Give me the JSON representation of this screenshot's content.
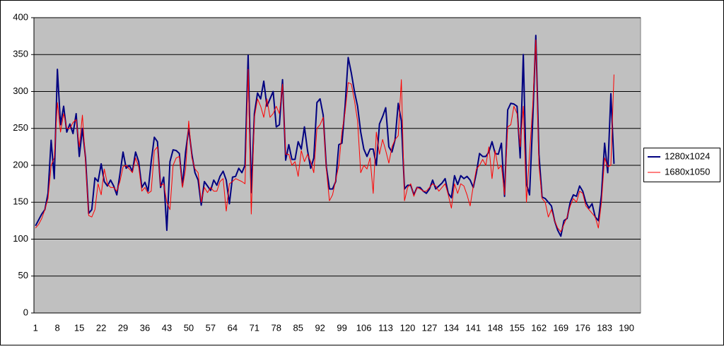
{
  "chart_data": {
    "type": "line",
    "categories": [
      1,
      null,
      null,
      null,
      null,
      null,
      null,
      8,
      null,
      null,
      null,
      null,
      null,
      null,
      15,
      null,
      null,
      null,
      null,
      null,
      null,
      22,
      null,
      null,
      null,
      null,
      null,
      null,
      29,
      null,
      null,
      null,
      null,
      null,
      null,
      36,
      null,
      null,
      null,
      null,
      null,
      null,
      43,
      null,
      null,
      null,
      null,
      null,
      null,
      50,
      null,
      null,
      null,
      null,
      null,
      null,
      57,
      null,
      null,
      null,
      null,
      null,
      null,
      64,
      null,
      null,
      null,
      null,
      null,
      null,
      71,
      null,
      null,
      null,
      null,
      null,
      null,
      78,
      null,
      null,
      null,
      null,
      null,
      null,
      85,
      null,
      null,
      null,
      null,
      null,
      null,
      92,
      null,
      null,
      null,
      null,
      null,
      null,
      99,
      null,
      null,
      null,
      null,
      null,
      null,
      106,
      null,
      null,
      null,
      null,
      null,
      null,
      113,
      null,
      null,
      null,
      null,
      null,
      null,
      120,
      null,
      null,
      null,
      null,
      null,
      null,
      127,
      null,
      null,
      null,
      null,
      null,
      null,
      134,
      null,
      null,
      null,
      null,
      null,
      null,
      141,
      null,
      null,
      null,
      null,
      null,
      null,
      148,
      null,
      null,
      null,
      null,
      null,
      null,
      155,
      null,
      null,
      null,
      null,
      null,
      null,
      162,
      null,
      null,
      null,
      null,
      null,
      null,
      169,
      null,
      null,
      null,
      null,
      null,
      null,
      176,
      null,
      null,
      null,
      null,
      null,
      null,
      183,
      null,
      null,
      null,
      null,
      null,
      null,
      190,
      null,
      null,
      null,
      null
    ],
    "series": [
      {
        "name": "1280x1024",
        "color": "#000080",
        "values": [
          118,
          126,
          134,
          140,
          162,
          234,
          182,
          330,
          255,
          280,
          245,
          256,
          243,
          270,
          212,
          250,
          210,
          135,
          140,
          183,
          178,
          202,
          178,
          172,
          180,
          172,
          160,
          188,
          218,
          196,
          200,
          192,
          218,
          205,
          170,
          177,
          165,
          205,
          238,
          232,
          170,
          184,
          112,
          205,
          221,
          220,
          216,
          172,
          218,
          250,
          215,
          190,
          180,
          146,
          178,
          172,
          166,
          180,
          173,
          185,
          192,
          180,
          148,
          184,
          185,
          196,
          190,
          200,
          349,
          163,
          270,
          298,
          290,
          314,
          280,
          290,
          300,
          252,
          255,
          316,
          207,
          228,
          208,
          208,
          232,
          222,
          252,
          220,
          196,
          210,
          285,
          290,
          268,
          198,
          168,
          168,
          178,
          228,
          230,
          280,
          346,
          325,
          300,
          280,
          245,
          222,
          212,
          222,
          222,
          200,
          256,
          266,
          278,
          225,
          218,
          235,
          284,
          260,
          168,
          173,
          173,
          160,
          170,
          170,
          165,
          162,
          168,
          180,
          168,
          172,
          176,
          182,
          162,
          156,
          186,
          174,
          186,
          182,
          185,
          180,
          170,
          190,
          216,
          212,
          212,
          218,
          232,
          216,
          215,
          230,
          158,
          275,
          284,
          283,
          280,
          210,
          350,
          175,
          160,
          260,
          376,
          215,
          157,
          155,
          150,
          145,
          125,
          112,
          104,
          125,
          128,
          150,
          160,
          158,
          172,
          165,
          150,
          142,
          148,
          130,
          125,
          160,
          230,
          190,
          297,
          202,
          null,
          null,
          null,
          null,
          null,
          null,
          null,
          null
        ]
      },
      {
        "name": "1680x1050",
        "color": "#ff0000",
        "values": [
          115,
          120,
          128,
          140,
          155,
          200,
          210,
          285,
          245,
          270,
          250,
          250,
          258,
          262,
          225,
          268,
          205,
          132,
          130,
          140,
          175,
          160,
          195,
          175,
          170,
          170,
          165,
          178,
          198,
          200,
          195,
          190,
          210,
          198,
          165,
          170,
          162,
          165,
          220,
          225,
          172,
          175,
          150,
          140,
          200,
          210,
          212,
          170,
          195,
          260,
          210,
          195,
          190,
          150,
          170,
          163,
          170,
          165,
          165,
          178,
          182,
          138,
          175,
          178,
          182,
          180,
          178,
          175,
          330,
          134,
          265,
          290,
          280,
          265,
          290,
          265,
          270,
          280,
          270,
          310,
          215,
          215,
          200,
          205,
          185,
          220,
          205,
          215,
          205,
          190,
          250,
          255,
          265,
          195,
          152,
          160,
          180,
          200,
          245,
          272,
          312,
          310,
          288,
          260,
          190,
          200,
          195,
          210,
          162,
          245,
          215,
          235,
          220,
          203,
          225,
          235,
          240,
          316,
          152,
          170,
          175,
          158,
          170,
          168,
          165,
          165,
          170,
          175,
          172,
          165,
          170,
          175,
          160,
          142,
          175,
          162,
          175,
          172,
          160,
          145,
          172,
          195,
          200,
          208,
          200,
          225,
          182,
          220,
          195,
          200,
          160,
          252,
          255,
          280,
          270,
          225,
          280,
          150,
          215,
          280,
          370,
          200,
          155,
          150,
          130,
          140,
          125,
          115,
          110,
          120,
          130,
          145,
          155,
          150,
          165,
          162,
          145,
          140,
          135,
          130,
          115,
          150,
          210,
          198,
          200,
          323,
          null,
          null,
          null,
          null,
          null,
          null,
          null,
          null
        ]
      }
    ],
    "ylim": [
      0,
      400
    ],
    "yticks": [
      0,
      50,
      100,
      150,
      200,
      250,
      300,
      350,
      400
    ],
    "grid": true,
    "legend": "right"
  }
}
